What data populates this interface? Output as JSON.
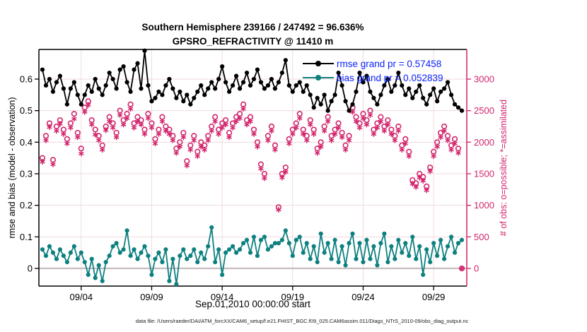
{
  "figure": {
    "title_line1": "Southern Hemisphere 239166 / 247492 = 96.636%",
    "title_line2": "GPSRO_REFRACTIVITY @ 11410 m",
    "xlabel": "Sep.01,2010 00:00:00 start",
    "ylabel_left": "rmse and bias (model - observation)",
    "ylabel_right": "# of obs: o=possible; *=assimilated",
    "datafile_note": "data file: /Users/raeder/DAI/ATM_forcXX/CAM6_setup/f.e21.FHIST_BGC.f09_025.CAM6assim.011/Diags_NTrS_2010-09/obs_diag_output.nc"
  },
  "legend": [
    {
      "label": "rmse grand pr = 0.57458",
      "series": "rmse"
    },
    {
      "label": "bias grand pr = 0.052839",
      "series": "bias"
    }
  ],
  "colors": {
    "rmse": "#000000",
    "bias": "#0e8080",
    "obs": "#d2236b",
    "legend_text": "#0b24fb",
    "grid": "#f0dade",
    "zero_line": "#c9bfc0",
    "axis": "#000000"
  },
  "chart_data": {
    "type": "line",
    "title": "Southern Hemisphere 239166 / 247492 = 96.636% | GPSRO_REFRACTIVITY @ 11410 m",
    "xlabel": "Sep.01,2010 00:00:00 start",
    "ylabel_left": "rmse and bias (model - observation)",
    "ylabel_right": "# of obs: o=possible; *=assimilated",
    "x_unit": "days since Sep 01, 2010 00:00 UTC",
    "x_start": 0.25,
    "x_step_days": 0.25,
    "xlim_days": [
      0,
      30.35
    ],
    "ylim_left": [
      -0.056,
      0.694
    ],
    "ylim_right": [
      -280,
      3470
    ],
    "right_per_left": 5000,
    "grid": true,
    "legend_position": "top-right-inside",
    "xticks": {
      "positions_days": [
        3,
        8,
        13,
        18,
        23,
        28
      ],
      "labels": [
        "09/04",
        "09/09",
        "09/14",
        "09/19",
        "09/24",
        "09/29"
      ]
    },
    "yticks_left": {
      "values": [
        0,
        0.1,
        0.2,
        0.3,
        0.4,
        0.5,
        0.6
      ],
      "labels": [
        "0",
        "0.1",
        "0.2",
        "0.3",
        "0.4",
        "0.5",
        "0.6"
      ]
    },
    "yticks_right": {
      "values": [
        0,
        500,
        1000,
        1500,
        2000,
        2500,
        3000
      ],
      "labels": [
        "0",
        "500",
        "1000",
        "1500",
        "2000",
        "2500",
        "3000"
      ]
    },
    "series": [
      {
        "name": "rmse",
        "axis": "left",
        "marker": "filled-circle",
        "line": true,
        "grand_mean": 0.57458,
        "values": [
          0.63,
          0.58,
          0.6,
          0.56,
          0.59,
          0.61,
          0.57,
          0.52,
          0.57,
          0.59,
          0.55,
          0.52,
          0.55,
          0.58,
          0.56,
          0.6,
          0.57,
          0.55,
          0.58,
          0.62,
          0.6,
          0.57,
          0.63,
          0.64,
          0.59,
          0.56,
          0.63,
          0.65,
          0.57,
          0.69,
          0.58,
          0.53,
          0.54,
          0.56,
          0.55,
          0.58,
          0.6,
          0.57,
          0.54,
          0.56,
          0.53,
          0.55,
          0.52,
          0.54,
          0.56,
          0.58,
          0.55,
          0.57,
          0.59,
          0.57,
          0.6,
          0.64,
          0.59,
          0.56,
          0.58,
          0.61,
          0.57,
          0.59,
          0.62,
          0.58,
          0.6,
          0.63,
          0.59,
          0.57,
          0.58,
          0.6,
          0.57,
          0.59,
          0.62,
          0.66,
          0.58,
          0.56,
          0.58,
          0.59,
          0.56,
          0.58,
          0.55,
          0.51,
          0.54,
          0.52,
          0.55,
          0.5,
          0.53,
          0.55,
          0.62,
          0.58,
          0.53,
          0.5,
          0.52,
          0.56,
          0.62,
          0.59,
          0.61,
          0.56,
          0.54,
          0.52,
          0.55,
          0.58,
          0.6,
          0.56,
          0.58,
          0.62,
          0.58,
          0.55,
          0.57,
          0.54,
          0.56,
          0.58,
          0.54,
          0.52,
          0.55,
          0.57,
          0.53,
          0.56,
          0.57,
          0.59,
          0.55,
          0.52,
          0.51,
          0.5
        ]
      },
      {
        "name": "bias",
        "axis": "left",
        "marker": "filled-circle",
        "line": true,
        "grand_mean": 0.052839,
        "values": [
          0.06,
          0.04,
          0.07,
          0.05,
          0.03,
          0.06,
          0.04,
          0.02,
          0.05,
          0.07,
          0.03,
          0.05,
          0.02,
          -0.02,
          0.03,
          -0.03,
          0.01,
          -0.04,
          0.02,
          0.04,
          0.07,
          0.08,
          0.05,
          0.06,
          0.12,
          0.04,
          0.06,
          0.03,
          0.05,
          0.07,
          0.04,
          -0.02,
          0.03,
          0.05,
          0.02,
          0.06,
          -0.04,
          0.03,
          -0.05,
          0.04,
          0.06,
          0.03,
          0.04,
          0.06,
          0.02,
          0.05,
          0.03,
          0.07,
          0.13,
          0.02,
          0.06,
          -0.02,
          0.05,
          0.06,
          0.07,
          0.05,
          0.06,
          0.08,
          0.09,
          0.05,
          0.1,
          0.04,
          0.09,
          0.1,
          0.06,
          0.07,
          0.08,
          0.08,
          0.09,
          0.12,
          0.08,
          0.04,
          0.09,
          0.1,
          0.05,
          0.08,
          0.03,
          0.07,
          0.02,
          0.11,
          0.05,
          0.08,
          0.03,
          0.09,
          0.02,
          0.07,
          0.01,
          0.08,
          0.11,
          0.03,
          0.08,
          0.02,
          0.09,
          0.03,
          0.07,
          0.01,
          0.08,
          0.11,
          0.02,
          0.07,
          0.03,
          0.09,
          0.05,
          0.08,
          0.04,
          0.1,
          0.03,
          0.07,
          -0.02,
          0.06,
          0.02,
          0.08,
          0.04,
          0.09,
          0.03,
          0.07,
          0.1,
          0.05,
          0.08,
          0.09
        ]
      },
      {
        "name": "possible",
        "axis": "right",
        "marker": "open-circle",
        "line": false,
        "values": [
          1750,
          2100,
          2300,
          1720,
          2250,
          2350,
          2200,
          2050,
          2300,
          2450,
          2150,
          1900,
          2550,
          2650,
          2350,
          2200,
          2100,
          1950,
          2250,
          2400,
          2300,
          2150,
          2500,
          2350,
          2450,
          2600,
          2300,
          2400,
          2350,
          2200,
          2450,
          2300,
          2050,
          2200,
          2400,
          2250,
          2200,
          2100,
          1900,
          2000,
          2150,
          1700,
          1950,
          2100,
          1850,
          2000,
          1950,
          2100,
          2250,
          2400,
          2200,
          2300,
          2350,
          2150,
          2300,
          2400,
          2450,
          2600,
          2350,
          2400,
          2200,
          2000,
          1650,
          1500,
          2100,
          2250,
          1950,
          970,
          1500,
          1600,
          2050,
          2200,
          2300,
          2450,
          2200,
          2100,
          2350,
          2200,
          1900,
          2000,
          2250,
          2400,
          2100,
          2200,
          2300,
          2150,
          1950,
          2100,
          2550,
          2400,
          2300,
          2450,
          2350,
          2500,
          2200,
          2300,
          2400,
          2250,
          2350,
          2200,
          2100,
          2250,
          1950,
          2050,
          1850,
          1400,
          1350,
          1500,
          1450,
          1300,
          1600,
          1850,
          2000,
          2150,
          2250,
          2100,
          1950,
          2050,
          1900,
          0
        ]
      },
      {
        "name": "assimilated",
        "axis": "right",
        "marker": "asterisk",
        "line": false,
        "values": [
          1690,
          2030,
          2240,
          1650,
          2180,
          2290,
          2130,
          1980,
          2230,
          2370,
          2080,
          1820,
          2480,
          2590,
          2280,
          2120,
          2030,
          1880,
          2190,
          2330,
          2230,
          2080,
          2430,
          2280,
          2380,
          2530,
          2230,
          2330,
          2280,
          2130,
          2380,
          2230,
          1980,
          2130,
          2330,
          2180,
          2130,
          2030,
          1830,
          1930,
          2080,
          1630,
          1880,
          2030,
          1780,
          1930,
          1880,
          2030,
          2180,
          2330,
          2130,
          2230,
          2280,
          2080,
          2230,
          2330,
          2380,
          2530,
          2280,
          2330,
          2130,
          1930,
          1580,
          1430,
          2030,
          2180,
          1880,
          930,
          1440,
          1530,
          1980,
          2130,
          2230,
          2380,
          2130,
          2030,
          2280,
          2130,
          1830,
          1930,
          2180,
          2330,
          2030,
          2130,
          2230,
          2080,
          1880,
          2030,
          2480,
          2330,
          2230,
          2380,
          2280,
          2430,
          2130,
          2230,
          2330,
          2180,
          2280,
          2130,
          2030,
          2180,
          1880,
          1980,
          1780,
          1340,
          1290,
          1440,
          1390,
          1240,
          1540,
          1780,
          1930,
          2080,
          2180,
          2030,
          1880,
          1980,
          1830,
          0
        ]
      }
    ]
  }
}
